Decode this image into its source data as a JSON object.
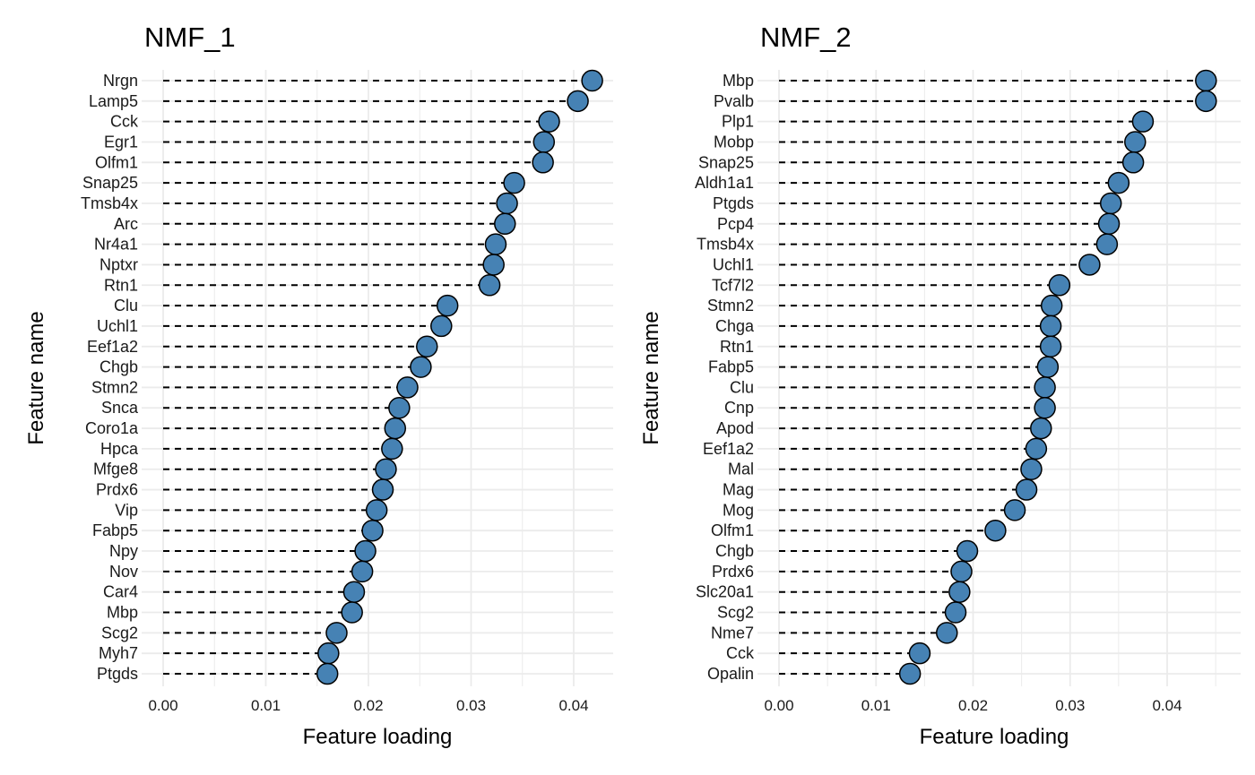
{
  "colors": {
    "point_fill": "#4682B4",
    "point_stroke": "#000000",
    "grid": "#EBEBEB",
    "segment": "#000000"
  },
  "chart_data": [
    {
      "type": "lollipop",
      "title": "NMF_1",
      "xlabel": "Feature loading",
      "ylabel": "Feature name",
      "xlim": [
        0,
        0.0435
      ],
      "xticks": [
        0.0,
        0.01,
        0.02,
        0.03,
        0.04
      ],
      "xtick_labels": [
        "0.00",
        "0.01",
        "0.02",
        "0.03",
        "0.04"
      ],
      "grid": true,
      "segment_style": "dashed",
      "categories": [
        "Nrgn",
        "Lamp5",
        "Cck",
        "Egr1",
        "Olfm1",
        "Snap25",
        "Tmsb4x",
        "Arc",
        "Nr4a1",
        "Nptxr",
        "Rtn1",
        "Clu",
        "Uchl1",
        "Eef1a2",
        "Chgb",
        "Stmn2",
        "Snca",
        "Coro1a",
        "Hpca",
        "Mfge8",
        "Prdx6",
        "Vip",
        "Fabp5",
        "Npy",
        "Nov",
        "Car4",
        "Mbp",
        "Scg2",
        "Myh7",
        "Ptgds"
      ],
      "values": [
        0.0418,
        0.0404,
        0.0376,
        0.0371,
        0.037,
        0.0342,
        0.0335,
        0.0333,
        0.0324,
        0.0322,
        0.0318,
        0.0277,
        0.0271,
        0.0257,
        0.0251,
        0.0238,
        0.023,
        0.0226,
        0.0223,
        0.0217,
        0.0214,
        0.0208,
        0.0204,
        0.0197,
        0.0194,
        0.0186,
        0.0184,
        0.0169,
        0.0161,
        0.016
      ]
    },
    {
      "type": "lollipop",
      "title": "NMF_2",
      "xlabel": "Feature loading",
      "ylabel": "Feature name",
      "xlim": [
        0,
        0.0455
      ],
      "xticks": [
        0.0,
        0.01,
        0.02,
        0.03,
        0.04
      ],
      "xtick_labels": [
        "0.00",
        "0.01",
        "0.02",
        "0.03",
        "0.04"
      ],
      "grid": true,
      "segment_style": "dashed",
      "categories": [
        "Mbp",
        "Pvalb",
        "Plp1",
        "Mobp",
        "Snap25",
        "Aldh1a1",
        "Ptgds",
        "Pcp4",
        "Tmsb4x",
        "Uchl1",
        "Tcf7l2",
        "Stmn2",
        "Chga",
        "Rtn1",
        "Fabp5",
        "Clu",
        "Cnp",
        "Apod",
        "Eef1a2",
        "Mal",
        "Mag",
        "Mog",
        "Olfm1",
        "Chgb",
        "Prdx6",
        "Slc20a1",
        "Scg2",
        "Nme7",
        "Cck",
        "Opalin"
      ],
      "values": [
        0.044,
        0.044,
        0.0375,
        0.0367,
        0.0365,
        0.035,
        0.0342,
        0.034,
        0.0338,
        0.032,
        0.0289,
        0.0281,
        0.028,
        0.028,
        0.0277,
        0.0274,
        0.0274,
        0.027,
        0.0265,
        0.026,
        0.0255,
        0.0243,
        0.0223,
        0.0194,
        0.0188,
        0.0186,
        0.0182,
        0.0173,
        0.0145,
        0.0135
      ]
    }
  ]
}
